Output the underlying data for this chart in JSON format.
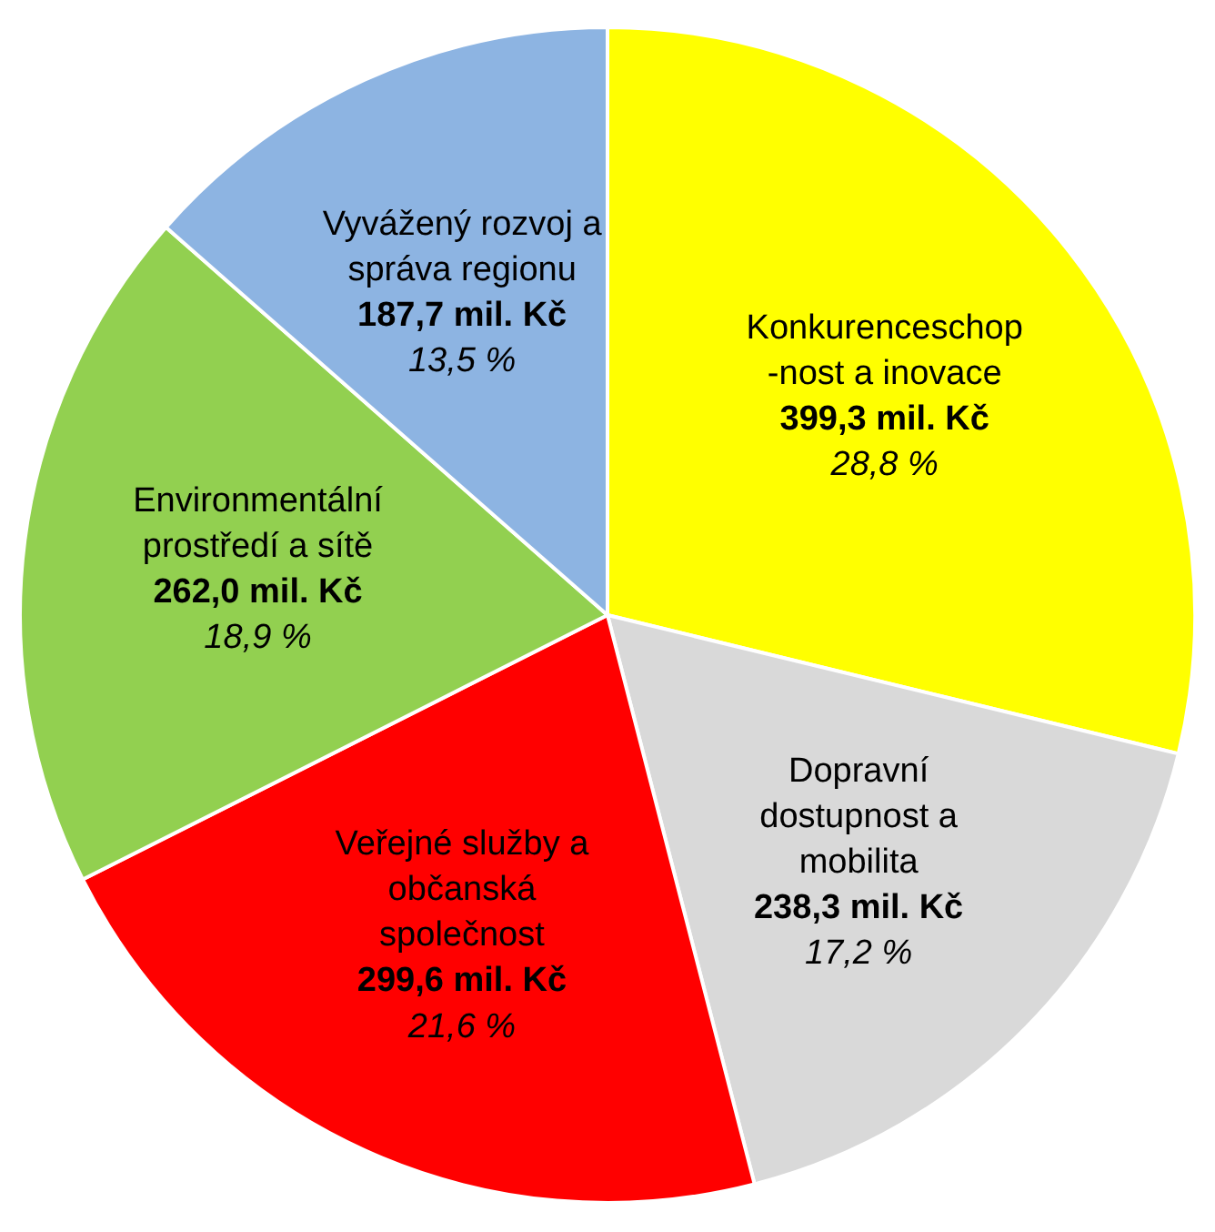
{
  "chart_data": {
    "type": "pie",
    "categories": [
      "Konkurenceschop\n-nost a inovace",
      "Dopravní\ndostupnost a\nmobilita",
      "Veřejné služby a\nobčanská\nspolečnost",
      "Environmentální\nprostředí a sítě",
      "Vyvážený rozvoj a\nspráva regionu"
    ],
    "values": [
      399.3,
      238.3,
      299.6,
      262.0,
      187.7
    ],
    "colors": [
      "#ffff00",
      "#d9d9d9",
      "#ff0000",
      "#92d050",
      "#8db4e2"
    ],
    "value_labels": [
      "399,3 mil. Kč",
      "238,3 mil. Kč",
      "299,6 mil. Kč",
      "262,0 mil. Kč",
      "187,7 mil. Kč"
    ],
    "annotations": [
      "28,8 %",
      "17,2 %",
      "21,6 %",
      "18,9 %",
      "13,5 %"
    ],
    "legend": false
  }
}
